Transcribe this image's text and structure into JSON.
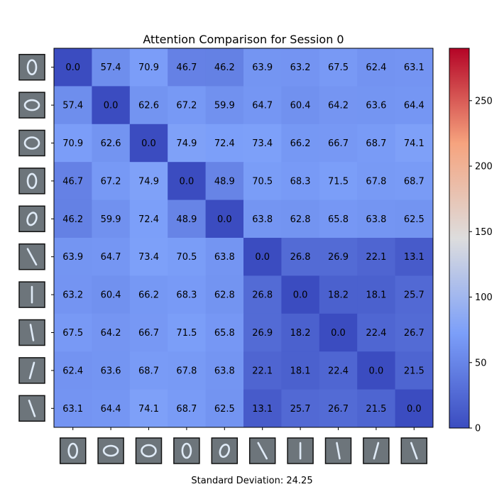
{
  "chart_data": {
    "type": "heatmap",
    "title": "Attention Comparison for Session 0",
    "footer": "Standard Deviation: 24.25",
    "row_digits": [
      "0",
      "0",
      "0",
      "0",
      "0",
      "1",
      "1",
      "1",
      "1",
      "1"
    ],
    "col_digits": [
      "0",
      "0",
      "0",
      "0",
      "0",
      "1",
      "1",
      "1",
      "1",
      "1"
    ],
    "matrix": [
      [
        0.0,
        57.4,
        70.9,
        46.7,
        46.2,
        63.9,
        63.2,
        67.5,
        62.4,
        63.1
      ],
      [
        57.4,
        0.0,
        62.6,
        67.2,
        59.9,
        64.7,
        60.4,
        64.2,
        63.6,
        64.4
      ],
      [
        70.9,
        62.6,
        0.0,
        74.9,
        72.4,
        73.4,
        66.2,
        66.7,
        68.7,
        74.1
      ],
      [
        46.7,
        67.2,
        74.9,
        0.0,
        48.9,
        70.5,
        68.3,
        71.5,
        67.8,
        68.7
      ],
      [
        46.2,
        59.9,
        72.4,
        48.9,
        0.0,
        63.8,
        62.8,
        65.8,
        63.8,
        62.5
      ],
      [
        63.9,
        64.7,
        73.4,
        70.5,
        63.8,
        0.0,
        26.8,
        26.9,
        22.1,
        13.1
      ],
      [
        63.2,
        60.4,
        66.2,
        68.3,
        62.8,
        26.8,
        0.0,
        18.2,
        18.1,
        25.7
      ],
      [
        67.5,
        64.2,
        66.7,
        71.5,
        65.8,
        26.9,
        18.2,
        0.0,
        22.4,
        26.7
      ],
      [
        62.4,
        63.6,
        68.7,
        67.8,
        63.8,
        22.1,
        18.1,
        22.4,
        0.0,
        21.5
      ],
      [
        63.1,
        64.4,
        74.1,
        68.7,
        62.5,
        13.1,
        25.7,
        26.7,
        21.5,
        0.0
      ]
    ],
    "colormap": "coolwarm",
    "vmin": 0,
    "vmax": 290,
    "colorbar_ticks": [
      0,
      50,
      100,
      150,
      200,
      250
    ]
  }
}
